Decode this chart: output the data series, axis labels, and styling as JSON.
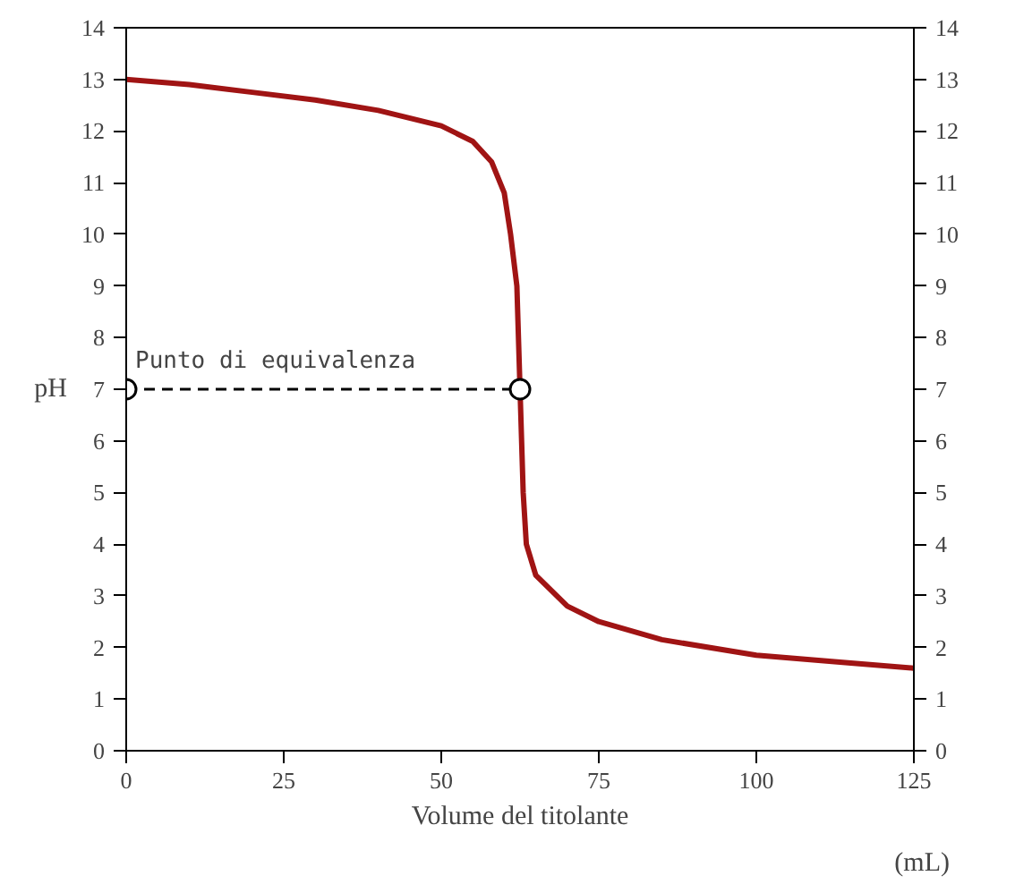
{
  "chart_data": {
    "type": "line",
    "xlabel": "Volume del titolante",
    "ylabel": "pH",
    "xlim": [
      0,
      125
    ],
    "xticks": [
      0,
      25,
      50,
      75,
      100,
      125
    ],
    "ylim": [
      0,
      14
    ],
    "yticks": [
      0,
      1,
      2,
      3,
      4,
      5,
      6,
      7,
      8,
      9,
      10,
      11,
      12,
      13,
      14
    ],
    "y2lim": [
      0,
      14
    ],
    "y2ticks": [
      0,
      1,
      2,
      3,
      4,
      5,
      6,
      7,
      8,
      9,
      10,
      11,
      12,
      13,
      14
    ],
    "grid": false,
    "series": [
      {
        "color": "#a01414",
        "line_style": "solid",
        "marker": "none",
        "x": [
          0,
          10,
          20,
          30,
          40,
          50,
          55,
          58,
          60,
          61,
          62,
          62.5,
          63,
          63.5,
          65,
          70,
          75,
          85,
          100,
          115,
          125
        ],
        "values": [
          13,
          12.9,
          12.75,
          12.6,
          12.4,
          12.1,
          11.8,
          11.4,
          10.8,
          10,
          9,
          7,
          5,
          4,
          3.4,
          2.8,
          2.5,
          2.15,
          1.85,
          1.7,
          1.6
        ]
      },
      {
        "color": "#000000",
        "line_style": "dashed",
        "marker": "circle",
        "x": [
          0,
          62.5
        ],
        "values": [
          7,
          7
        ]
      }
    ],
    "annotations": [
      {
        "text": "Punto di equivalenza",
        "x": 0,
        "y": 7
      },
      "(mL)"
    ]
  }
}
